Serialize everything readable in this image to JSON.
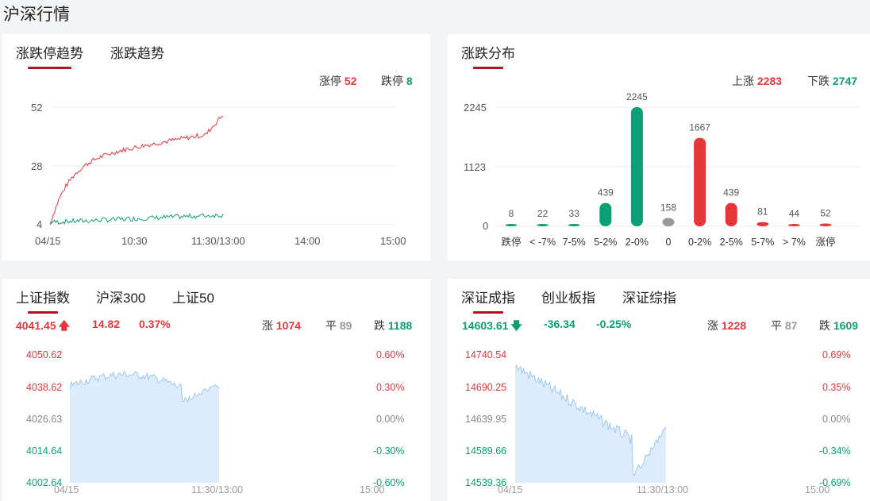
{
  "page": {
    "title": "沪深行情"
  },
  "limit_panel": {
    "tabs": [
      "涨跌停趋势",
      "涨跌趋势"
    ],
    "limit_up_label": "涨停",
    "limit_up_value": "52",
    "limit_down_label": "跌停",
    "limit_down_value": "8",
    "yticks": [
      "52",
      "28",
      "4"
    ],
    "xticks": [
      "04/15",
      "10:30",
      "11:30/13:00",
      "14:00",
      "15:00"
    ]
  },
  "dist_panel": {
    "tabs": [
      "涨跌分布"
    ],
    "up_label": "上涨",
    "up_value": "2283",
    "down_label": "下跌",
    "down_value": "2747",
    "yticks": [
      "2245",
      "1123",
      "0"
    ]
  },
  "sh_panel": {
    "tabs": [
      "上证指数",
      "沪深300",
      "上证50"
    ],
    "price": "4041.45",
    "change": "14.82",
    "pct": "0.37%",
    "rise_label": "涨",
    "rise": "1074",
    "flat_label": "平",
    "flat": "89",
    "fall_label": "跌",
    "fall": "1188",
    "left_ticks": [
      "4050.62",
      "4038.62",
      "4026.63",
      "4014.64",
      "4002.64"
    ],
    "right_ticks": [
      "0.60%",
      "0.30%",
      "0.00%",
      "-0.30%",
      "-0.60%"
    ],
    "xticks": [
      "04/15",
      "11:30/13:00",
      "15:00"
    ]
  },
  "sz_panel": {
    "tabs": [
      "深证成指",
      "创业板指",
      "深证综指"
    ],
    "price": "14603.61",
    "change": "-36.34",
    "pct": "-0.25%",
    "rise_label": "涨",
    "rise": "1228",
    "flat_label": "平",
    "flat": "87",
    "fall_label": "跌",
    "fall": "1609",
    "left_ticks": [
      "14740.54",
      "14690.25",
      "14639.95",
      "14589.66",
      "14539.36"
    ],
    "right_ticks": [
      "0.69%",
      "0.35%",
      "0.00%",
      "-0.34%",
      "-0.69%"
    ],
    "xticks": [
      "04/15",
      "11:30/13:00",
      "15:00"
    ]
  },
  "colors": {
    "up": "#e5373a",
    "down": "#0c9e76",
    "flat": "#999999",
    "tab_underline": "#b0131f",
    "area": "#dcecfd",
    "area_line": "#9fc8f0"
  },
  "chart_data": [
    {
      "type": "line",
      "series": [
        {
          "name": "涨停",
          "values_shape": "rising",
          "end": 52
        },
        {
          "name": "跌停",
          "values_shape": "flat",
          "end": 8
        }
      ],
      "ylim": [
        4,
        52
      ],
      "categories": [
        "04/15",
        "10:30",
        "11:30/13:00",
        "14:00",
        "15:00"
      ]
    },
    {
      "type": "bar",
      "categories": [
        "跌停",
        "< -7%",
        "7-5%",
        "5-2%",
        "2-0%",
        "0",
        "0-2%",
        "2-5%",
        "5-7%",
        "> 7%",
        "涨停"
      ],
      "values": [
        8,
        22,
        33,
        439,
        2245,
        158,
        1667,
        439,
        81,
        44,
        52
      ],
      "labels": [
        "8",
        "22",
        "33",
        "439",
        "2245",
        "158",
        "1667",
        "439",
        "81",
        "44",
        "52"
      ],
      "ylim": [
        0,
        2245
      ]
    },
    {
      "type": "area",
      "name": "上证指数",
      "ylim": [
        4002.64,
        4050.62
      ]
    },
    {
      "type": "area",
      "name": "深证成指",
      "ylim": [
        14539.36,
        14740.54
      ]
    }
  ]
}
